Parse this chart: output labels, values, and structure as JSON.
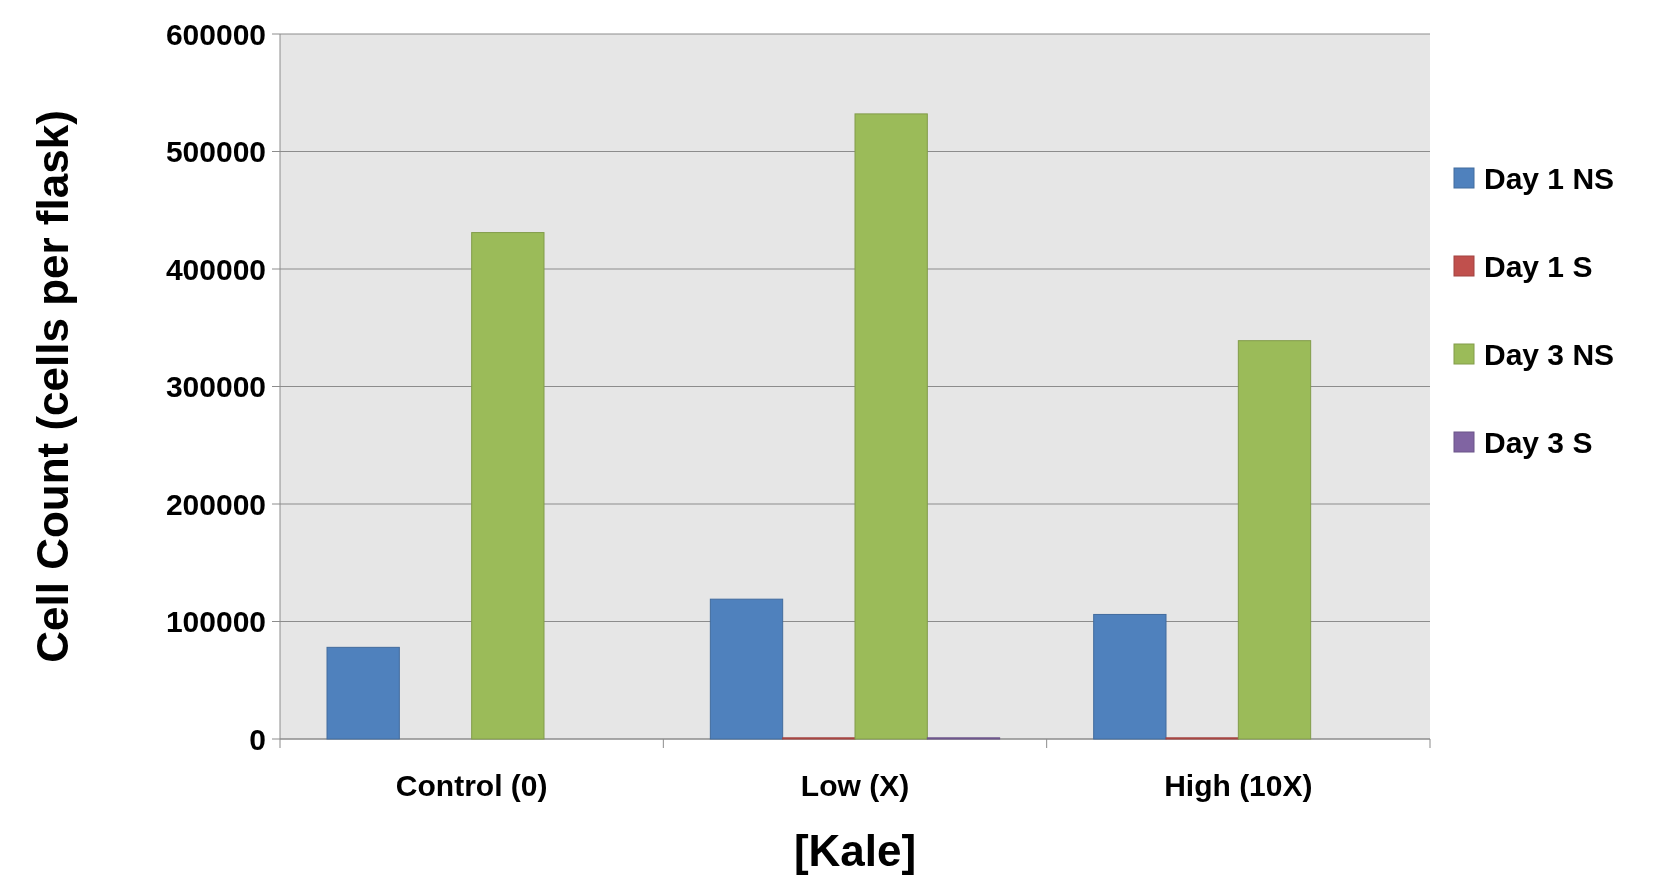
{
  "chart_data": {
    "type": "bar",
    "xlabel": "[Kale]",
    "ylabel": "Cell Count (cells per flask)",
    "categories": [
      "Control (0)",
      "Low (X)",
      "High (10X)"
    ],
    "series": [
      {
        "name": "Day 1 NS",
        "color": "#4f81bd",
        "values": [
          78000,
          119000,
          106000
        ]
      },
      {
        "name": "Day 1 S",
        "color": "#c0504d",
        "values": [
          0,
          1000,
          1000
        ]
      },
      {
        "name": "Day 3 NS",
        "color": "#9bbb59",
        "values": [
          431000,
          532000,
          339000
        ]
      },
      {
        "name": "Day 3 S",
        "color": "#8064a2",
        "values": [
          0,
          1000,
          0
        ]
      }
    ],
    "ylim": [
      0,
      600000
    ],
    "yticks": [
      0,
      100000,
      200000,
      300000,
      400000,
      500000,
      600000
    ],
    "grid": "y",
    "legend": "right"
  }
}
